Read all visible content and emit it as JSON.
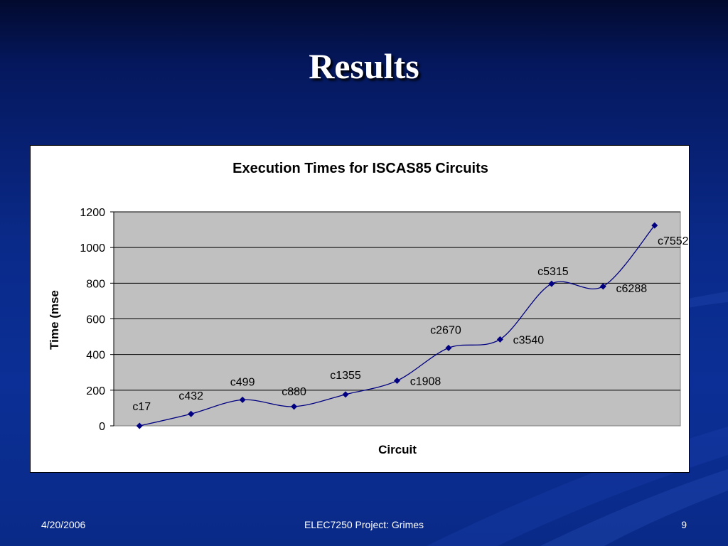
{
  "slide": {
    "title": "Results",
    "footer_date": "4/20/2006",
    "footer_center": "ELEC7250 Project: Grimes",
    "footer_page": "9"
  },
  "colors": {
    "plot_area": "#c0c0c0",
    "series_line": "#000080",
    "background": "#0b2f96"
  },
  "chart_data": {
    "type": "line",
    "title": "Execution Times for ISCAS85 Circuits",
    "xlabel": "Circuit",
    "ylabel": "Time (mse",
    "ylim": [
      0,
      1200
    ],
    "yticks": [
      "0",
      "200",
      "400",
      "600",
      "800",
      "1000",
      "1200"
    ],
    "grid": true,
    "legend": "none",
    "smooth": true,
    "series": [
      {
        "points": [
          {
            "label": "c17",
            "value": 0
          },
          {
            "label": "c432",
            "value": 67
          },
          {
            "label": "c499",
            "value": 146
          },
          {
            "label": "c880",
            "value": 108
          },
          {
            "label": "c1355",
            "value": 176
          },
          {
            "label": "c1908",
            "value": 253
          },
          {
            "label": "c2670",
            "value": 437
          },
          {
            "label": "c3540",
            "value": 485
          },
          {
            "label": "c5315",
            "value": 797
          },
          {
            "label": "c6288",
            "value": 782
          },
          {
            "label": "c7552",
            "value": 1124
          }
        ]
      }
    ]
  }
}
